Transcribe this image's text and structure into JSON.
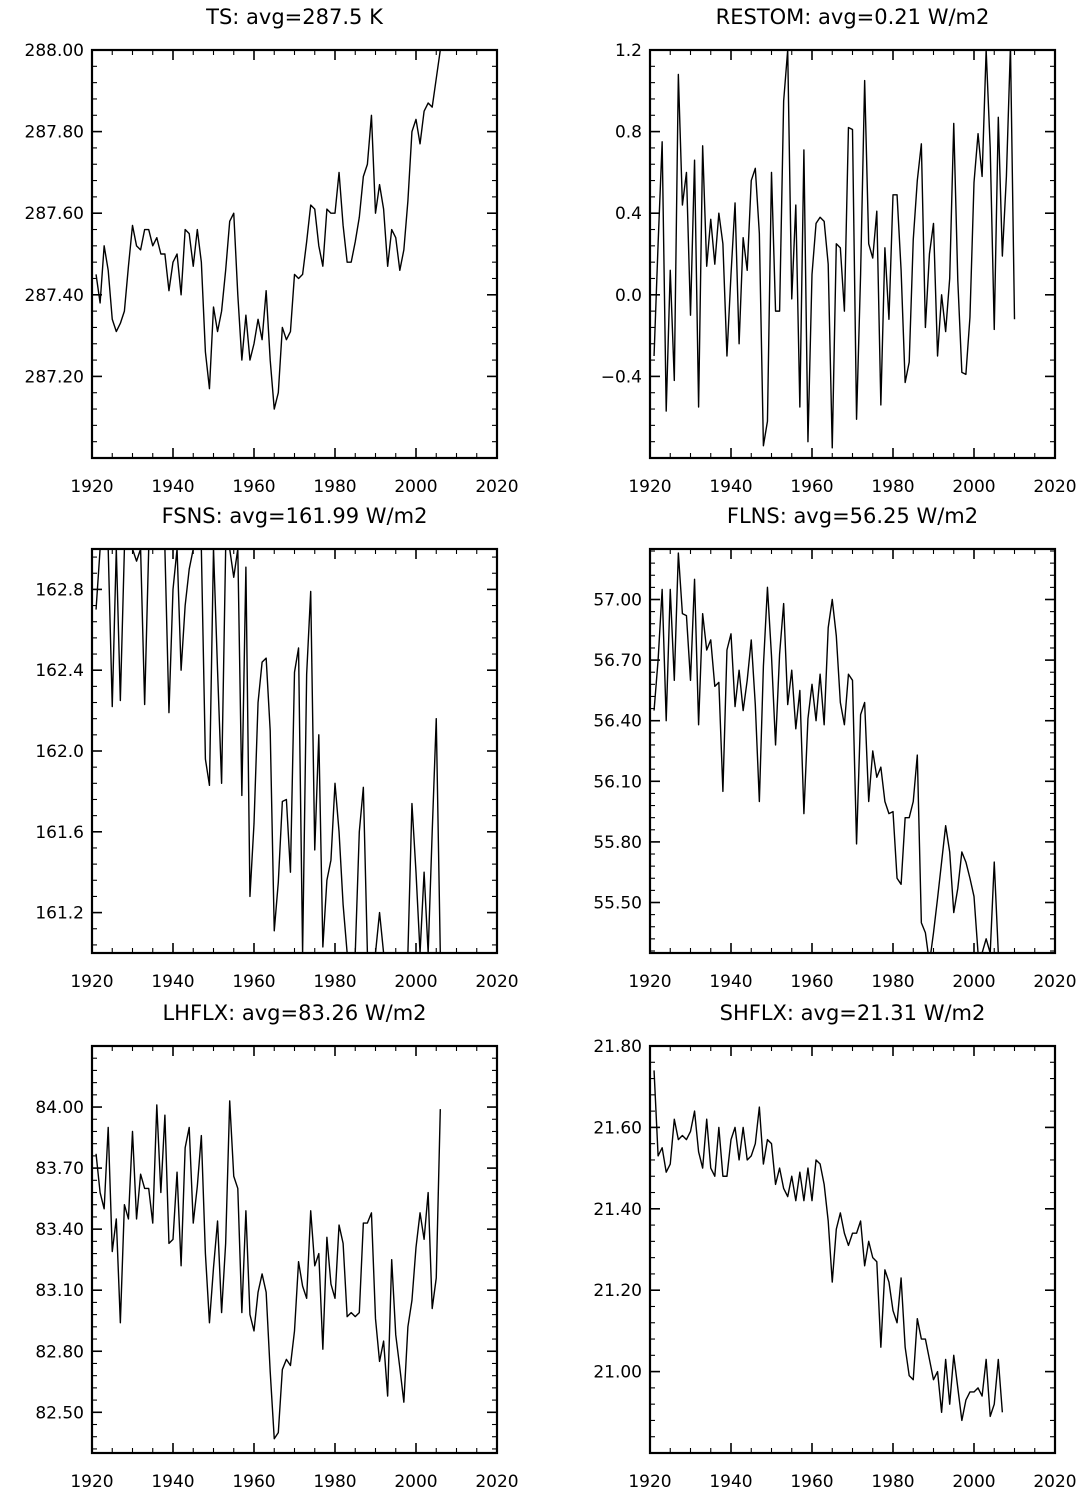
{
  "chart_data": [
    {
      "type": "line",
      "title": "TS: avg=287.5 K",
      "xlim": [
        1920,
        2020
      ],
      "ylim": [
        287.0,
        288.0
      ],
      "xticks": [
        1920,
        1940,
        1960,
        1980,
        2000,
        2020
      ],
      "xtick_labels": [
        "1920",
        "1940",
        "1960",
        "1980",
        "2000",
        "2020"
      ],
      "yticks": [
        287.2,
        287.4,
        287.6,
        287.8,
        288.0
      ],
      "ytick_labels": [
        "287.20",
        "287.40",
        "287.60",
        "287.80",
        "288.00"
      ],
      "x_start": 1921,
      "y": [
        287.45,
        287.38,
        287.52,
        287.46,
        287.34,
        287.31,
        287.33,
        287.36,
        287.47,
        287.57,
        287.52,
        287.51,
        287.56,
        287.56,
        287.52,
        287.54,
        287.5,
        287.5,
        287.41,
        287.48,
        287.5,
        287.4,
        287.56,
        287.55,
        287.47,
        287.56,
        287.48,
        287.26,
        287.17,
        287.37,
        287.31,
        287.36,
        287.46,
        287.58,
        287.6,
        287.4,
        287.24,
        287.35,
        287.24,
        287.28,
        287.34,
        287.29,
        287.41,
        287.24,
        287.12,
        287.16,
        287.32,
        287.29,
        287.31,
        287.45,
        287.44,
        287.45,
        287.53,
        287.62,
        287.61,
        287.52,
        287.47,
        287.61,
        287.6,
        287.6,
        287.7,
        287.57,
        287.48,
        287.48,
        287.53,
        287.59,
        287.69,
        287.72,
        287.84,
        287.6,
        287.67,
        287.61,
        287.47,
        287.56,
        287.54,
        287.46,
        287.51,
        287.63,
        287.8,
        287.83,
        287.77,
        287.85,
        287.87,
        287.86,
        287.93,
        288.0
      ]
    },
    {
      "type": "line",
      "title": "RESTOM: avg=0.21 W/m2",
      "xlim": [
        1920,
        2020
      ],
      "ylim": [
        -0.8,
        1.2
      ],
      "xticks": [
        1920,
        1940,
        1960,
        1980,
        2000,
        2020
      ],
      "xtick_labels": [
        "1920",
        "1940",
        "1960",
        "1980",
        "2000",
        "2020"
      ],
      "yticks": [
        -0.4,
        0.0,
        0.4,
        0.8,
        1.2
      ],
      "ytick_labels": [
        "−0.4",
        "0.0",
        "0.4",
        "0.8",
        "1.2"
      ],
      "x_start": 1921,
      "y": [
        -0.3,
        0.25,
        0.75,
        -0.57,
        0.12,
        -0.42,
        1.08,
        0.44,
        0.6,
        -0.1,
        0.66,
        -0.55,
        0.73,
        0.14,
        0.37,
        0.15,
        0.4,
        0.25,
        -0.3,
        0.1,
        0.45,
        -0.24,
        0.28,
        0.12,
        0.56,
        0.62,
        0.3,
        -0.74,
        -0.62,
        0.6,
        -0.08,
        -0.08,
        0.95,
        1.2,
        -0.02,
        0.44,
        -0.55,
        0.71,
        -0.72,
        0.1,
        0.35,
        0.38,
        0.36,
        0.15,
        -0.75,
        0.25,
        0.23,
        -0.08,
        0.82,
        0.81,
        -0.61,
        0.1,
        1.05,
        0.25,
        0.18,
        0.41,
        -0.54,
        0.23,
        -0.12,
        0.49,
        0.49,
        0.12,
        -0.43,
        -0.33,
        0.27,
        0.56,
        0.74,
        -0.16,
        0.2,
        0.35,
        -0.3,
        0.0,
        -0.18,
        0.08,
        0.84,
        0.07,
        -0.38,
        -0.39,
        -0.11,
        0.55,
        0.79,
        0.58,
        1.2,
        0.72,
        -0.17,
        0.87,
        0.19,
        0.58,
        1.22,
        -0.12
      ]
    },
    {
      "type": "line",
      "title": "FSNS: avg=161.99 W/m2",
      "xlim": [
        1920,
        2020
      ],
      "ylim": [
        161.0,
        163.0
      ],
      "xticks": [
        1920,
        1940,
        1960,
        1980,
        2000,
        2020
      ],
      "xtick_labels": [
        "1920",
        "1940",
        "1960",
        "1980",
        "2000",
        "2020"
      ],
      "yticks": [
        161.2,
        161.6,
        162.0,
        162.4,
        162.8
      ],
      "ytick_labels": [
        "161.2",
        "161.6",
        "162.0",
        "162.4",
        "162.8"
      ],
      "x_start": 1921,
      "y": [
        162.7,
        163.0,
        163.0,
        163.0,
        162.22,
        163.0,
        162.25,
        163.0,
        163.0,
        163.0,
        162.94,
        163.0,
        162.23,
        163.0,
        163.0,
        163.0,
        163.0,
        163.0,
        162.19,
        162.8,
        163.0,
        162.4,
        162.72,
        162.9,
        163.0,
        163.0,
        163.0,
        161.96,
        161.83,
        163.0,
        162.4,
        161.84,
        163.0,
        163.0,
        162.86,
        163.0,
        161.78,
        162.91,
        161.28,
        161.64,
        162.24,
        162.44,
        162.46,
        162.1,
        161.11,
        161.35,
        161.75,
        161.76,
        161.4,
        162.39,
        162.51,
        161.0,
        162.38,
        162.79,
        161.51,
        162.08,
        161.03,
        161.36,
        161.46,
        161.84,
        161.6,
        161.24,
        161.0,
        161.0,
        161.0,
        161.6,
        161.82,
        161.0,
        161.0,
        161.0,
        161.2,
        161.0,
        161.0,
        161.0,
        161.0,
        161.0,
        161.0,
        161.0,
        161.74,
        161.4,
        161.0,
        161.4,
        161.0,
        161.6,
        162.16,
        161.0
      ]
    },
    {
      "type": "line",
      "title": "FLNS: avg=56.25 W/m2",
      "xlim": [
        1920,
        2020
      ],
      "ylim": [
        55.25,
        57.25
      ],
      "xticks": [
        1920,
        1940,
        1960,
        1980,
        2000,
        2020
      ],
      "xtick_labels": [
        "1920",
        "1940",
        "1960",
        "1980",
        "2000",
        "2020"
      ],
      "yticks": [
        55.5,
        55.8,
        56.1,
        56.4,
        56.7,
        57.0
      ],
      "ytick_labels": [
        "55.50",
        "55.80",
        "56.10",
        "56.40",
        "56.70",
        "57.00"
      ],
      "x_start": 1921,
      "y": [
        56.45,
        56.7,
        57.05,
        56.4,
        57.05,
        56.6,
        57.23,
        56.93,
        56.92,
        56.6,
        57.1,
        56.38,
        56.93,
        56.75,
        56.8,
        56.57,
        56.59,
        56.05,
        56.75,
        56.83,
        56.47,
        56.65,
        56.45,
        56.6,
        56.8,
        56.48,
        56.0,
        56.67,
        57.06,
        56.72,
        56.28,
        56.73,
        56.98,
        56.48,
        56.65,
        56.36,
        56.55,
        55.94,
        56.41,
        56.58,
        56.4,
        56.63,
        56.38,
        56.86,
        57.0,
        56.82,
        56.49,
        56.38,
        56.63,
        56.6,
        55.79,
        56.43,
        56.49,
        56.0,
        56.25,
        56.12,
        56.17,
        56.0,
        55.94,
        55.95,
        55.62,
        55.59,
        55.92,
        55.92,
        56.0,
        56.23,
        55.4,
        55.35,
        55.2,
        55.35,
        55.52,
        55.7,
        55.88,
        55.75,
        55.45,
        55.57,
        55.75,
        55.7,
        55.62,
        55.53,
        55.25,
        55.25,
        55.32,
        55.25,
        55.7,
        55.25
      ]
    },
    {
      "type": "line",
      "title": "LHFLX: avg=83.26 W/m2",
      "xlim": [
        1920,
        2020
      ],
      "ylim": [
        82.3,
        84.3
      ],
      "xticks": [
        1920,
        1940,
        1960,
        1980,
        2000,
        2020
      ],
      "xtick_labels": [
        "1920",
        "1940",
        "1960",
        "1980",
        "2000",
        "2020"
      ],
      "yticks": [
        82.5,
        82.8,
        83.1,
        83.4,
        83.7,
        84.0
      ],
      "ytick_labels": [
        "82.50",
        "82.80",
        "83.10",
        "83.40",
        "83.70",
        "84.00"
      ],
      "x_start": 1921,
      "y": [
        83.77,
        83.58,
        83.5,
        83.9,
        83.29,
        83.45,
        82.94,
        83.52,
        83.45,
        83.88,
        83.45,
        83.67,
        83.6,
        83.6,
        83.43,
        84.01,
        83.58,
        83.96,
        83.33,
        83.35,
        83.68,
        83.22,
        83.8,
        83.9,
        83.43,
        83.61,
        83.86,
        83.28,
        82.94,
        83.21,
        83.44,
        82.99,
        83.33,
        84.03,
        83.66,
        83.6,
        82.99,
        83.49,
        82.98,
        82.9,
        83.09,
        83.18,
        83.09,
        82.7,
        82.37,
        82.4,
        82.71,
        82.76,
        82.73,
        82.9,
        83.24,
        83.12,
        83.06,
        83.49,
        83.22,
        83.28,
        82.81,
        83.36,
        83.13,
        83.06,
        83.42,
        83.33,
        82.97,
        82.99,
        82.97,
        82.99,
        83.43,
        83.43,
        83.48,
        82.96,
        82.75,
        82.85,
        82.58,
        83.25,
        82.88,
        82.72,
        82.55,
        82.92,
        83.05,
        83.31,
        83.48,
        83.35,
        83.58,
        83.01,
        83.16,
        83.99
      ]
    },
    {
      "type": "line",
      "title": "SHFLX: avg=21.31 W/m2",
      "xlim": [
        1920,
        2020
      ],
      "ylim": [
        20.8,
        21.8
      ],
      "xticks": [
        1920,
        1940,
        1960,
        1980,
        2000,
        2020
      ],
      "xtick_labels": [
        "1920",
        "1940",
        "1960",
        "1980",
        "2000",
        "2020"
      ],
      "yticks": [
        21.0,
        21.2,
        21.4,
        21.6,
        21.8
      ],
      "ytick_labels": [
        "21.00",
        "21.20",
        "21.40",
        "21.60",
        "21.80"
      ],
      "x_start": 1921,
      "y": [
        21.74,
        21.53,
        21.55,
        21.49,
        21.51,
        21.62,
        21.57,
        21.58,
        21.57,
        21.59,
        21.64,
        21.54,
        21.5,
        21.62,
        21.5,
        21.48,
        21.6,
        21.48,
        21.48,
        21.57,
        21.6,
        21.52,
        21.6,
        21.52,
        21.53,
        21.56,
        21.65,
        21.51,
        21.57,
        21.56,
        21.46,
        21.5,
        21.45,
        21.43,
        21.48,
        21.42,
        21.49,
        21.42,
        21.5,
        21.42,
        21.52,
        21.51,
        21.46,
        21.37,
        21.22,
        21.35,
        21.39,
        21.34,
        21.31,
        21.34,
        21.34,
        21.37,
        21.26,
        21.32,
        21.28,
        21.27,
        21.06,
        21.25,
        21.22,
        21.15,
        21.12,
        21.23,
        21.06,
        20.99,
        20.98,
        21.13,
        21.08,
        21.08,
        21.03,
        20.98,
        21.0,
        20.9,
        21.03,
        20.92,
        21.04,
        20.96,
        20.88,
        20.93,
        20.95,
        20.95,
        20.96,
        20.94,
        21.03,
        20.89,
        20.92,
        21.03,
        20.9
      ]
    }
  ]
}
